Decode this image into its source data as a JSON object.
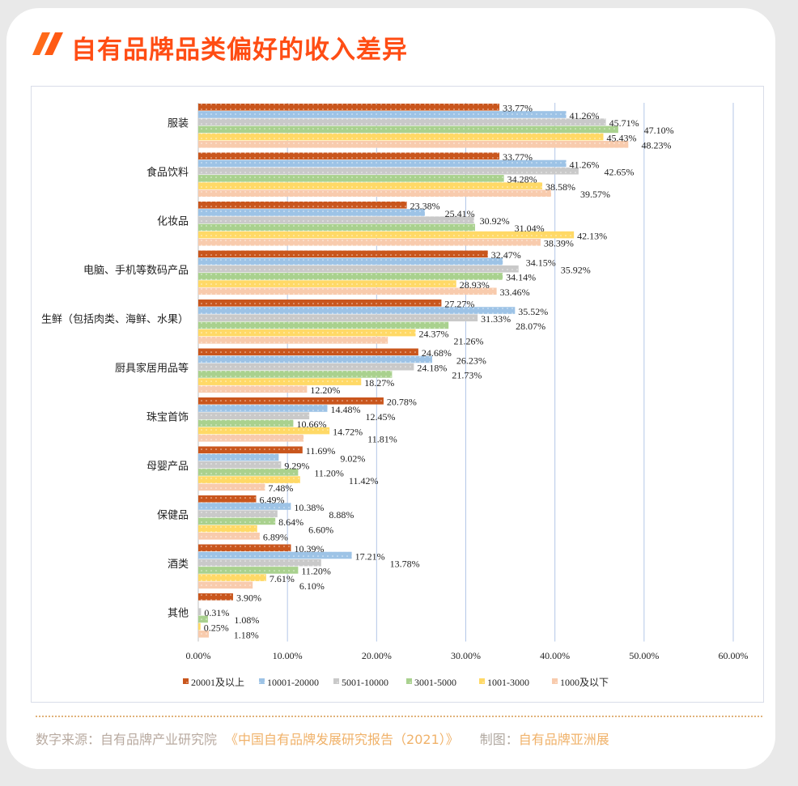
{
  "title": "自有品牌品类偏好的收入差异",
  "footer": {
    "source_label": "数字来源：",
    "source_org": "自有品牌产业研究院",
    "source_report": "《中国自有品牌发展研究报告（2021）》",
    "made_label": "制图：",
    "made_by": "自有品牌亚洲展"
  },
  "colors": {
    "title": "#ff4d14",
    "series": [
      "#c9561d",
      "#9dc3e6",
      "#c9c9c9",
      "#a9d18e",
      "#ffd966",
      "#f8cbad"
    ]
  },
  "chart_data": {
    "type": "bar",
    "orientation": "horizontal",
    "categories": [
      "服装",
      "食品饮料",
      "化妆品",
      "电脑、手机等数码产品",
      "生鲜（包括肉类、海鲜、水果）",
      "厨具家居用品等",
      "珠宝首饰",
      "母婴产品",
      "保健品",
      "酒类",
      "其他"
    ],
    "series": [
      {
        "name": "20001及以上",
        "values": [
          33.77,
          33.77,
          23.38,
          32.47,
          27.27,
          24.68,
          20.78,
          11.69,
          6.49,
          10.39,
          3.9
        ]
      },
      {
        "name": "10001-20000",
        "values": [
          41.26,
          41.26,
          25.41,
          34.15,
          35.52,
          26.23,
          14.48,
          9.02,
          10.38,
          17.21,
          null
        ]
      },
      {
        "name": "5001-10000",
        "values": [
          45.71,
          42.65,
          30.92,
          35.92,
          31.33,
          24.18,
          12.45,
          9.29,
          8.88,
          13.78,
          0.31
        ]
      },
      {
        "name": "3001-5000",
        "values": [
          47.1,
          34.28,
          31.04,
          34.14,
          28.07,
          21.73,
          10.66,
          11.2,
          8.64,
          11.2,
          1.08
        ]
      },
      {
        "name": "1001-3000",
        "values": [
          45.43,
          38.58,
          42.13,
          28.93,
          24.37,
          18.27,
          14.72,
          11.42,
          6.6,
          7.61,
          0.25
        ]
      },
      {
        "name": "1000及以下",
        "values": [
          48.23,
          39.57,
          38.39,
          33.46,
          21.26,
          12.2,
          11.81,
          7.48,
          6.89,
          6.1,
          1.18
        ]
      }
    ],
    "xlim": [
      0,
      60
    ],
    "xticks": [
      "0.00%",
      "10.00%",
      "20.00%",
      "30.00%",
      "40.00%",
      "50.00%",
      "60.00%"
    ],
    "grid": true,
    "legend_position": "bottom"
  }
}
